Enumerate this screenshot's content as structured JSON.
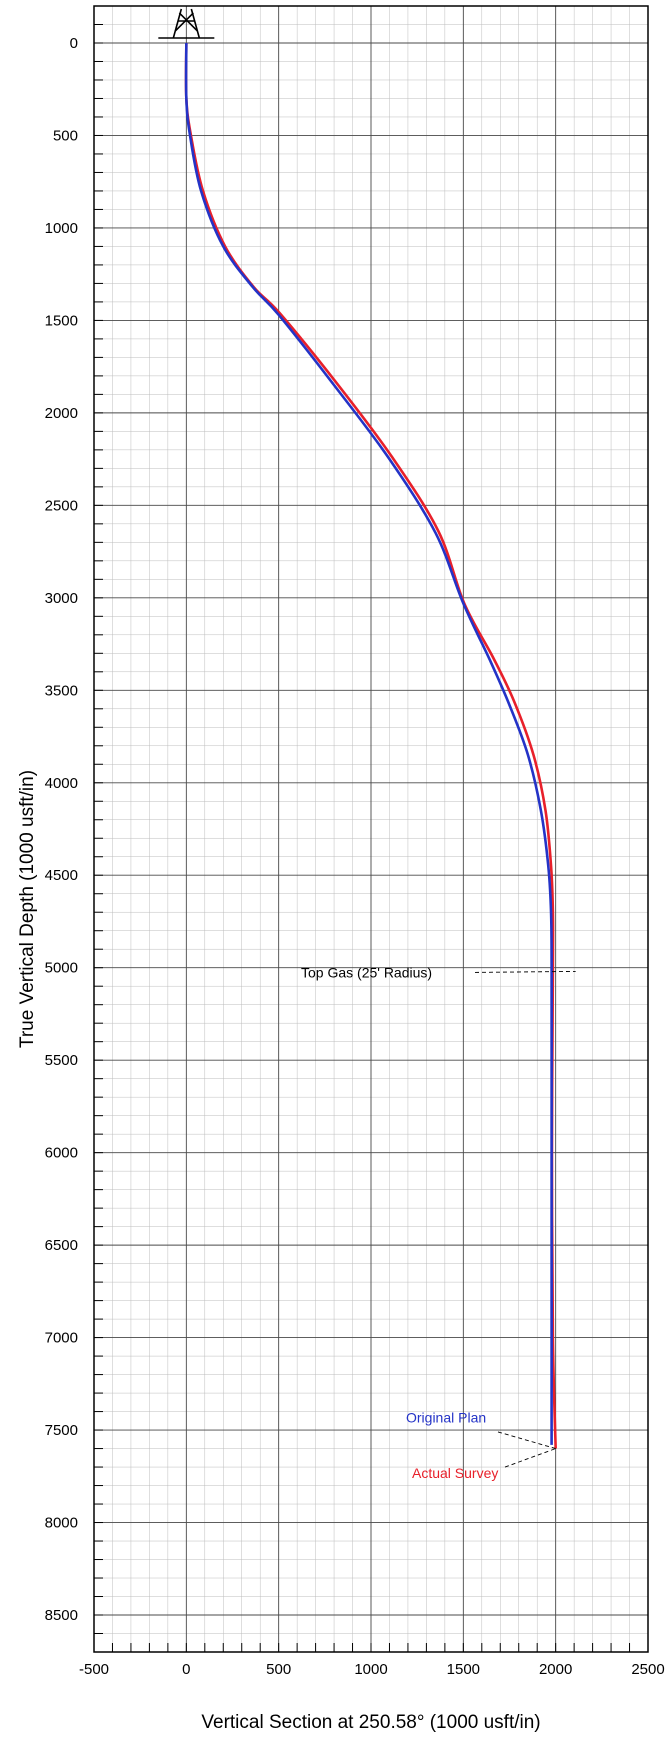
{
  "chart_data": {
    "type": "line",
    "xlabel": "Vertical Section at 250.58° (1000 usft/in)",
    "ylabel": "True Vertical Depth (1000 usft/in)",
    "xlim": [
      -500,
      2500
    ],
    "ylim": [
      -200,
      8700
    ],
    "y_inverted": true,
    "grid": true,
    "x_ticks": [
      -500,
      0,
      500,
      1000,
      1500,
      2000,
      2500
    ],
    "x_tick_labels": [
      "-500",
      "0",
      "500",
      "1000",
      "1500",
      "2000",
      "2500"
    ],
    "y_ticks": [
      0,
      500,
      1000,
      1500,
      2000,
      2500,
      3000,
      3500,
      4000,
      4500,
      5000,
      5500,
      6000,
      6500,
      7000,
      7500,
      8000,
      8500
    ],
    "y_tick_labels": [
      "0",
      "500",
      "1000",
      "1500",
      "2000",
      "2500",
      "3000",
      "3500",
      "4000",
      "4500",
      "5000",
      "5500",
      "6000",
      "6500",
      "7000",
      "7500",
      "8000",
      "8500"
    ],
    "series": [
      {
        "name": "Original Plan",
        "color": "#2433c7",
        "points": [
          [
            0,
            0
          ],
          [
            0,
            300
          ],
          [
            20,
            500
          ],
          [
            80,
            800
          ],
          [
            200,
            1100
          ],
          [
            360,
            1320
          ],
          [
            500,
            1470
          ],
          [
            800,
            1850
          ],
          [
            1100,
            2250
          ],
          [
            1350,
            2650
          ],
          [
            1500,
            3030
          ],
          [
            1650,
            3350
          ],
          [
            1750,
            3580
          ],
          [
            1850,
            3850
          ],
          [
            1920,
            4150
          ],
          [
            1960,
            4450
          ],
          [
            1975,
            4700
          ],
          [
            1978,
            5000
          ],
          [
            1978,
            6000
          ],
          [
            1978,
            7000
          ],
          [
            1978,
            7580
          ]
        ]
      },
      {
        "name": "Actual Survey",
        "color": "#e8202a",
        "points": [
          [
            0,
            0
          ],
          [
            0,
            300
          ],
          [
            25,
            500
          ],
          [
            90,
            800
          ],
          [
            210,
            1100
          ],
          [
            365,
            1320
          ],
          [
            505,
            1460
          ],
          [
            815,
            1840
          ],
          [
            1115,
            2240
          ],
          [
            1365,
            2640
          ],
          [
            1505,
            3030
          ],
          [
            1665,
            3330
          ],
          [
            1775,
            3560
          ],
          [
            1880,
            3850
          ],
          [
            1945,
            4150
          ],
          [
            1975,
            4450
          ],
          [
            1985,
            4700
          ],
          [
            1985,
            5000
          ],
          [
            1980,
            6000
          ],
          [
            1985,
            7000
          ],
          [
            2000,
            7600
          ]
        ]
      }
    ],
    "annotations": [
      {
        "text": "Top Gas (25' Radius)",
        "x": 2000,
        "y": 5020,
        "color": "#000000"
      },
      {
        "text": "Original Plan",
        "x": 1985,
        "y": 7560,
        "color": "#2433c7"
      },
      {
        "text": "Actual Survey",
        "x": 2000,
        "y": 7600,
        "color": "#e8202a"
      }
    ],
    "marker": {
      "type": "rig",
      "icon": "derrick-icon",
      "x": 0,
      "y": 0
    }
  }
}
